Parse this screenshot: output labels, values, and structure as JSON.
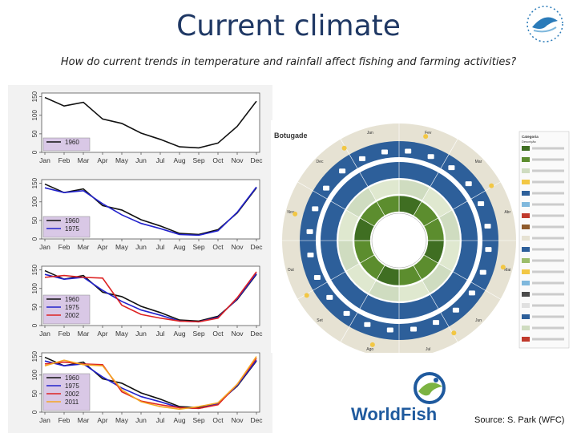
{
  "title": "Current climate",
  "subtitle": "How do current trends in temperature and rainfall affect fishing and farming activities?",
  "source": "Source: S. Park (WFC)",
  "logo_text": "WorldFish",
  "colors": {
    "title": "#1f3864",
    "logo_blue": "#1f5a9e",
    "logo_green": "#7cb342",
    "accent": "#2b7bb9"
  },
  "chart_data": [
    {
      "type": "line",
      "categories": [
        "Jan",
        "Feb",
        "Mar",
        "Apr",
        "May",
        "Jun",
        "Jul",
        "Aug",
        "Sep",
        "Oct",
        "Nov",
        "Dec"
      ],
      "yticks": [
        "0",
        "50",
        "100",
        "150"
      ],
      "ylim": [
        0,
        160
      ],
      "legend": "bottom-left",
      "series": [
        {
          "name": "1960",
          "color": "#111111",
          "values": [
            148,
            125,
            135,
            90,
            78,
            52,
            35,
            15,
            12,
            25,
            70,
            138
          ]
        }
      ]
    },
    {
      "type": "line",
      "categories": [
        "Jan",
        "Feb",
        "Mar",
        "Apr",
        "May",
        "Jun",
        "Jul",
        "Aug",
        "Sep",
        "Oct",
        "Nov",
        "Dec"
      ],
      "yticks": [
        "0",
        "50",
        "100",
        "150"
      ],
      "ylim": [
        0,
        160
      ],
      "legend": "bottom-left",
      "series": [
        {
          "name": "1960",
          "color": "#111111",
          "values": [
            148,
            125,
            135,
            90,
            78,
            52,
            35,
            15,
            12,
            25,
            70,
            138
          ]
        },
        {
          "name": "1975",
          "color": "#2222cc",
          "values": [
            138,
            125,
            130,
            95,
            65,
            42,
            28,
            12,
            10,
            22,
            72,
            140
          ]
        }
      ]
    },
    {
      "type": "line",
      "categories": [
        "Jan",
        "Feb",
        "Mar",
        "Apr",
        "May",
        "Jun",
        "Jul",
        "Aug",
        "Sep",
        "Oct",
        "Nov",
        "Dec"
      ],
      "yticks": [
        "0",
        "50",
        "100",
        "150"
      ],
      "ylim": [
        0,
        160
      ],
      "legend": "bottom-left",
      "series": [
        {
          "name": "1960",
          "color": "#111111",
          "values": [
            148,
            125,
            135,
            90,
            78,
            52,
            35,
            15,
            12,
            25,
            70,
            138
          ]
        },
        {
          "name": "1975",
          "color": "#2222cc",
          "values": [
            138,
            125,
            130,
            95,
            65,
            42,
            28,
            12,
            10,
            22,
            72,
            140
          ]
        },
        {
          "name": "2002",
          "color": "#dd2222",
          "values": [
            130,
            135,
            130,
            128,
            55,
            30,
            20,
            12,
            10,
            20,
            75,
            145
          ]
        }
      ]
    },
    {
      "type": "line",
      "categories": [
        "Jan",
        "Feb",
        "Mar",
        "Apr",
        "May",
        "Jun",
        "Jul",
        "Aug",
        "Sep",
        "Oct",
        "Nov",
        "Dec"
      ],
      "yticks": [
        "0",
        "50",
        "100",
        "150"
      ],
      "ylim": [
        0,
        160
      ],
      "legend": "bottom-left",
      "series": [
        {
          "name": "1960",
          "color": "#111111",
          "values": [
            148,
            125,
            135,
            90,
            78,
            52,
            35,
            15,
            12,
            25,
            70,
            138
          ]
        },
        {
          "name": "1975",
          "color": "#2222cc",
          "values": [
            138,
            125,
            130,
            95,
            65,
            42,
            28,
            12,
            10,
            22,
            72,
            140
          ]
        },
        {
          "name": "2002",
          "color": "#dd2222",
          "values": [
            130,
            135,
            130,
            128,
            55,
            30,
            20,
            12,
            10,
            20,
            75,
            145
          ]
        },
        {
          "name": "2011",
          "color": "#f5a623",
          "values": [
            125,
            140,
            128,
            125,
            60,
            28,
            15,
            8,
            15,
            25,
            75,
            150
          ]
        }
      ]
    }
  ],
  "calendar": {
    "title": "Botugade",
    "months": [
      "Jan",
      "Fev",
      "Mar",
      "Abr",
      "Mai",
      "Jun",
      "Jul",
      "Ago",
      "Set",
      "Out",
      "Nov",
      "Dec"
    ],
    "legend_heading": "Categoria",
    "legend_subheading": "Descrição"
  }
}
